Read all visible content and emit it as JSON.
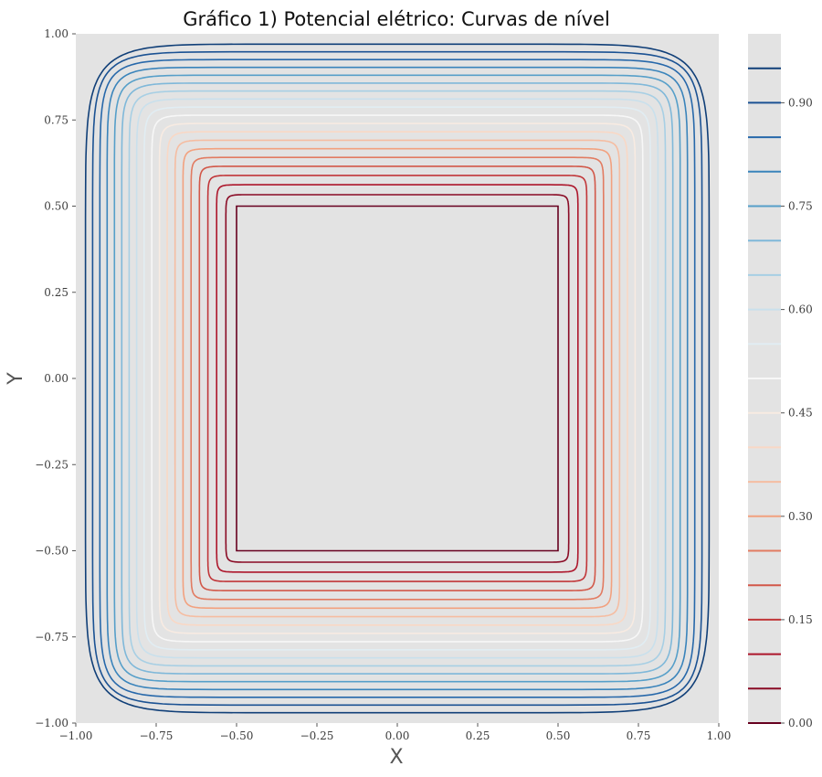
{
  "chart_data": {
    "type": "contour",
    "title": "Gráfico 1) Potencial elétrico: Curvas de nível",
    "xlabel": "X",
    "ylabel": "Y",
    "xlim": [
      -1.0,
      1.0
    ],
    "ylim": [
      -1.0,
      1.0
    ],
    "grid": false,
    "background": "#e3e3e3",
    "x_ticks": [
      "−1.00",
      "−0.75",
      "−0.50",
      "−0.25",
      "0.00",
      "0.25",
      "0.50",
      "0.75",
      "1.00"
    ],
    "y_ticks": [
      "−1.00",
      "−0.75",
      "−0.50",
      "−0.25",
      "0.00",
      "0.25",
      "0.50",
      "0.75",
      "1.00"
    ],
    "colormap": "RdBu",
    "inner_conductor": {
      "x": [
        -0.5,
        0.5
      ],
      "y": [
        -0.5,
        0.5
      ],
      "potential": 0.0
    },
    "outer_boundary": {
      "x": [
        -1.0,
        1.0
      ],
      "y": [
        -1.0,
        1.0
      ],
      "potential": 1.0
    },
    "levels": [
      0.0,
      0.05,
      0.1,
      0.15,
      0.2,
      0.25,
      0.3,
      0.35,
      0.4,
      0.45,
      0.5,
      0.55,
      0.6,
      0.65,
      0.7,
      0.75,
      0.8,
      0.85,
      0.9,
      0.95
    ],
    "level_colors": [
      "#67001f",
      "#8a0b25",
      "#ad162b",
      "#c13639",
      "#d25849",
      "#e27b61",
      "#f2a17f",
      "#f5bda2",
      "#f9d8c5",
      "#f8ebe2",
      "#f7f7f7",
      "#e1edf3",
      "#c9e0ec",
      "#a7cfe4",
      "#7fb8d9",
      "#569fc9",
      "#3a84bb",
      "#2768aa",
      "#1b5293",
      "#103f78"
    ],
    "colorbar_ticks": [
      "0.00",
      "0.15",
      "0.30",
      "0.45",
      "0.60",
      "0.75",
      "0.90"
    ],
    "colorbar_tick_values": [
      0.0,
      0.15,
      0.3,
      0.45,
      0.6,
      0.75,
      0.9
    ]
  }
}
